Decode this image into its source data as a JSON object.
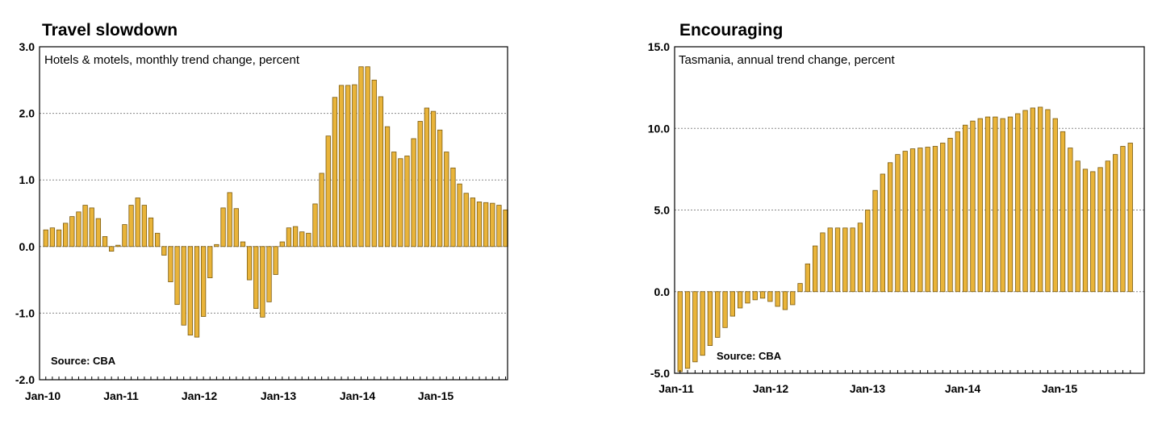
{
  "chart_data": [
    {
      "type": "bar",
      "title": "Travel slowdown",
      "subtitle": "Hotels & motels, monthly trend change, percent",
      "source": "Source: CBA",
      "ylim": [
        -2.0,
        3.0
      ],
      "yticks": [
        "3.0",
        "2.0",
        "1.0",
        "0.0",
        "-1.0",
        "-2.0"
      ],
      "ytick_values": [
        3.0,
        2.0,
        1.0,
        0.0,
        -1.0,
        -2.0
      ],
      "xtick_labels": [
        "Jan-10",
        "Jan-11",
        "Jan-12",
        "Jan-13",
        "Jan-14",
        "Jan-15"
      ],
      "grid": true,
      "x_start": "Jan-10",
      "frequency": "monthly",
      "values": [
        0.25,
        0.28,
        0.25,
        0.35,
        0.45,
        0.52,
        0.62,
        0.58,
        0.42,
        0.15,
        -0.07,
        0.02,
        0.33,
        0.62,
        0.73,
        0.62,
        0.43,
        0.2,
        -0.13,
        -0.53,
        -0.87,
        -1.18,
        -1.33,
        -1.36,
        -1.05,
        -0.47,
        0.03,
        0.58,
        0.81,
        0.57,
        0.07,
        -0.5,
        -0.93,
        -1.06,
        -0.83,
        -0.42,
        0.07,
        0.28,
        0.3,
        0.22,
        0.2,
        0.64,
        1.1,
        1.66,
        2.24,
        2.42,
        2.42,
        2.43,
        2.7,
        2.7,
        2.5,
        2.25,
        1.8,
        1.42,
        1.32,
        1.36,
        1.62,
        1.88,
        2.08,
        2.03,
        1.75,
        1.42,
        1.18,
        0.94,
        0.8,
        0.73,
        0.67,
        0.66,
        0.65,
        0.62,
        0.55
      ]
    },
    {
      "type": "bar",
      "title": "Encouraging",
      "subtitle": "Tasmania, annual trend change, percent",
      "source": "Source: CBA",
      "ylim": [
        -5.0,
        15.0
      ],
      "yticks": [
        "15.0",
        "10.0",
        "5.0",
        "0.0",
        "-5.0"
      ],
      "ytick_values": [
        15.0,
        10.0,
        5.0,
        0.0,
        -5.0
      ],
      "xtick_labels": [
        "Jan-11",
        "Jan-12",
        "Jan-13",
        "Jan-14",
        "Jan-15"
      ],
      "grid": true,
      "x_start": "Jan-11",
      "frequency": "monthly",
      "values": [
        -4.9,
        -4.7,
        -4.3,
        -3.9,
        -3.3,
        -2.8,
        -2.2,
        -1.5,
        -1.0,
        -0.7,
        -0.5,
        -0.4,
        -0.6,
        -0.9,
        -1.1,
        -0.8,
        0.5,
        1.7,
        2.8,
        3.6,
        3.9,
        3.9,
        3.9,
        3.9,
        4.2,
        5.0,
        6.2,
        7.2,
        7.9,
        8.4,
        8.6,
        8.75,
        8.8,
        8.85,
        8.9,
        9.1,
        9.4,
        9.8,
        10.2,
        10.45,
        10.6,
        10.7,
        10.7,
        10.6,
        10.7,
        10.9,
        11.1,
        11.25,
        11.3,
        11.15,
        10.6,
        9.8,
        8.8,
        8.0,
        7.5,
        7.35,
        7.6,
        8.0,
        8.4,
        8.9,
        9.1
      ]
    }
  ]
}
